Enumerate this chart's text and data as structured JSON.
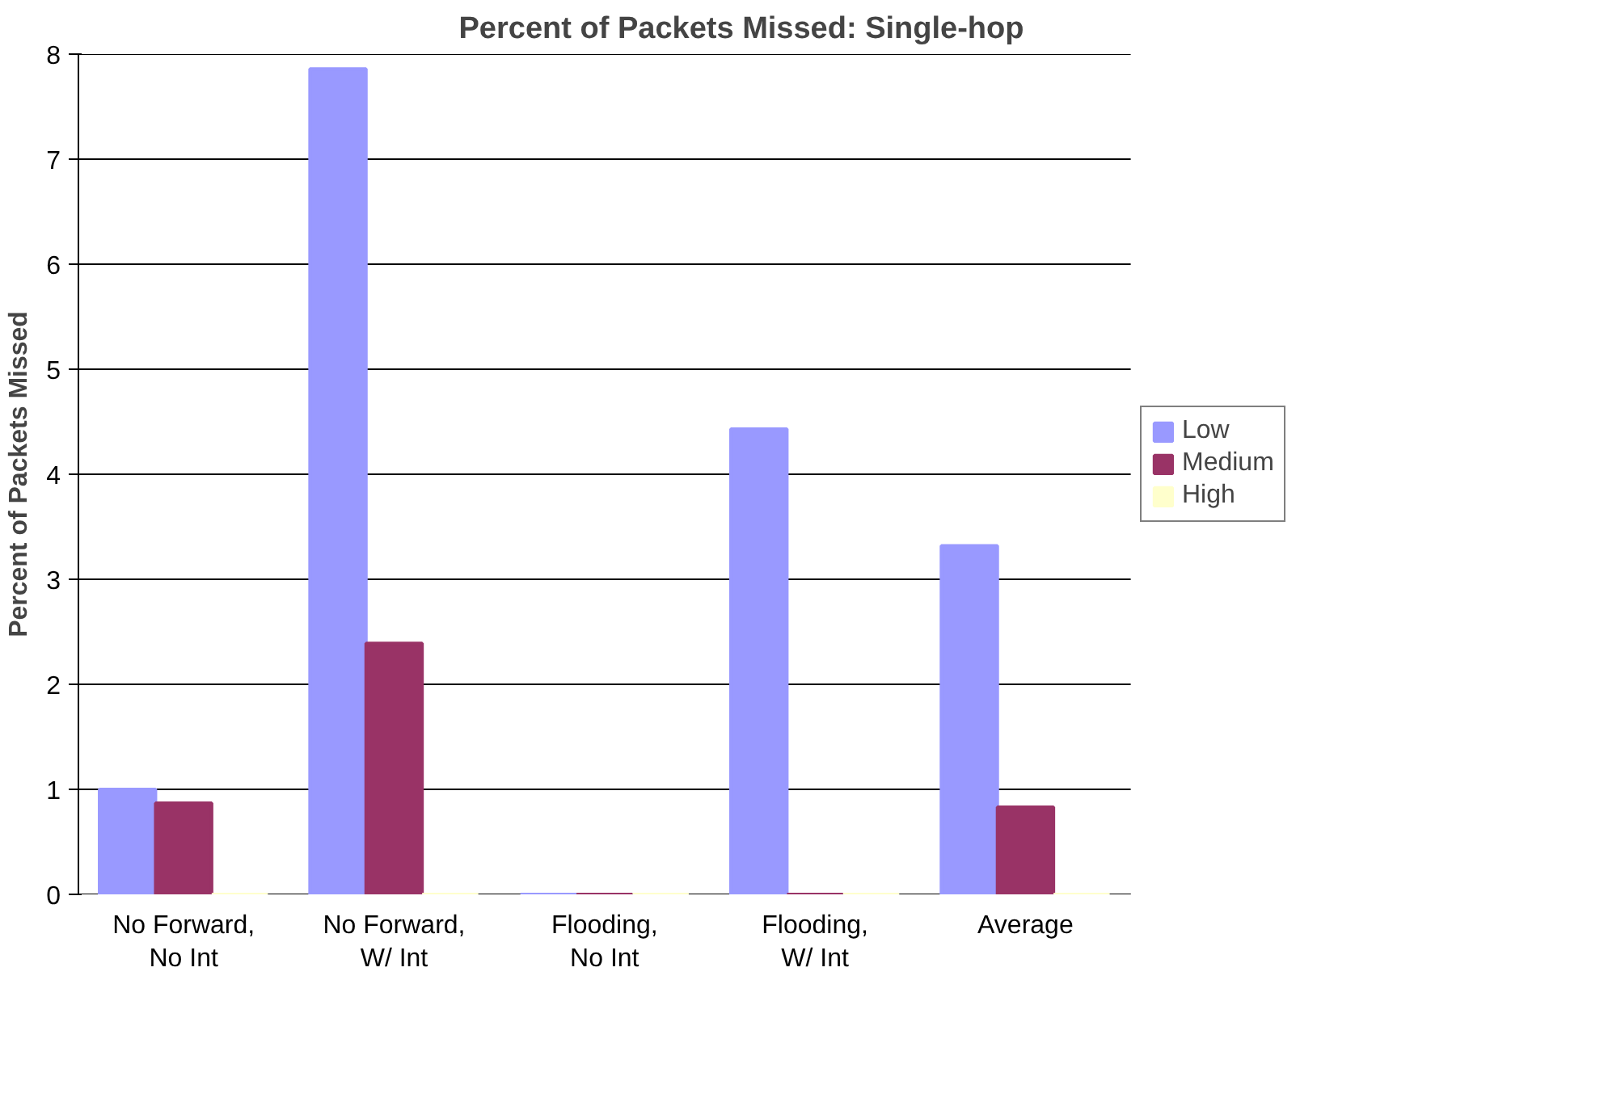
{
  "chart_data": {
    "type": "bar",
    "title": "Percent of Packets Missed: Single-hop",
    "ylabel": "Percent of Packets Missed",
    "categories": [
      "No Forward,\nNo Int",
      "No Forward,\nW/ Int",
      "Flooding,\nNo Int",
      "Flooding,\nW/ Int",
      "Average"
    ],
    "series": [
      {
        "name": "Low",
        "color": "#9999ff",
        "values": [
          1.0,
          7.86,
          0,
          4.43,
          3.32
        ]
      },
      {
        "name": "Medium",
        "color": "#993366",
        "values": [
          0.87,
          2.39,
          0,
          0,
          0.83
        ]
      },
      {
        "name": "High",
        "color": "#ffffcc",
        "values": [
          0,
          0,
          0,
          0,
          0
        ]
      }
    ],
    "ylim": [
      0,
      8
    ],
    "yticks": [
      0,
      1,
      2,
      3,
      4,
      5,
      6,
      7,
      8
    ],
    "grid": "y",
    "legend": "right"
  }
}
